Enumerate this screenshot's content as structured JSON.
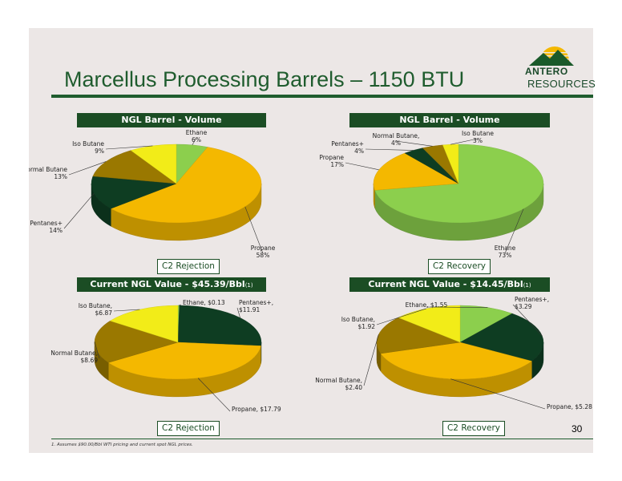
{
  "title": "Marcellus Processing Barrels – 1150 BTU",
  "logo": {
    "line1": "ANTERO",
    "line2": "RESOURCES"
  },
  "page_number": "30",
  "footnote": "1.    Assumes $90.00/Bbl WTI pricing and current spot NGL prices.",
  "colors": {
    "Ethane": "#8ccf4d",
    "Propane": "#f4b800",
    "Pentanes+": "#0e3d22",
    "Normal Butane": "#9a7800",
    "Iso Butane": "#f2ec18"
  },
  "panels": [
    {
      "header": "NGL Barrel - Volume",
      "header_sup": "",
      "tag": "C2 Rejection"
    },
    {
      "header": "NGL Barrel - Volume",
      "header_sup": "",
      "tag": "C2 Recovery"
    },
    {
      "header": "Current NGL Value - $45.39/Bbl",
      "header_sup": "(1)",
      "tag": "C2 Rejection"
    },
    {
      "header": "Current NGL Value - $14.45/Bbl",
      "header_sup": "(1)",
      "tag": "C2 Recovery"
    }
  ],
  "chart_data": [
    {
      "type": "pie",
      "title": "NGL Barrel - Volume",
      "subtitle": "C2 Rejection",
      "slices": [
        {
          "name": "Ethane",
          "value": 6,
          "label": "Ethane\n6%"
        },
        {
          "name": "Propane",
          "value": 58,
          "label": "Propane\n58%"
        },
        {
          "name": "Pentanes+",
          "value": 14,
          "label": "Pentanes+\n14%"
        },
        {
          "name": "Normal Butane",
          "value": 13,
          "label": "Normal Butane\n13%"
        },
        {
          "name": "Iso Butane",
          "value": 9,
          "label": "Iso Butane\n9%"
        }
      ]
    },
    {
      "type": "pie",
      "title": "NGL Barrel - Volume",
      "subtitle": "C2 Recovery",
      "slices": [
        {
          "name": "Ethane",
          "value": 73,
          "label": "Ethane\n73%"
        },
        {
          "name": "Propane",
          "value": 17,
          "label": "Propane\n17%"
        },
        {
          "name": "Pentanes+",
          "value": 4,
          "label": "Pentanes+\n4%"
        },
        {
          "name": "Normal Butane",
          "value": 4,
          "label": "Normal Butane,\n4%"
        },
        {
          "name": "Iso Butane",
          "value": 3,
          "label": "Iso Butane\n3%"
        }
      ]
    },
    {
      "type": "pie",
      "title": "Current NGL Value - $45.39/Bbl",
      "subtitle": "C2 Rejection",
      "slices": [
        {
          "name": "Ethane",
          "value": 0.13,
          "label": "Ethane, $0.13"
        },
        {
          "name": "Pentanes+",
          "value": 11.91,
          "label": "Pentanes+,\n$11.91"
        },
        {
          "name": "Propane",
          "value": 17.79,
          "label": "Propane, $17.79"
        },
        {
          "name": "Normal Butane",
          "value": 8.69,
          "label": "Normal Butane,\n$8.69"
        },
        {
          "name": "Iso Butane",
          "value": 6.87,
          "label": "Iso Butane,\n$6.87"
        }
      ]
    },
    {
      "type": "pie",
      "title": "Current NGL Value - $14.45/Bbl",
      "subtitle": "C2 Recovery",
      "slices": [
        {
          "name": "Ethane",
          "value": 1.55,
          "label": "Ethane, $1.55"
        },
        {
          "name": "Pentanes+",
          "value": 3.29,
          "label": "Pentanes+,\n$3.29"
        },
        {
          "name": "Propane",
          "value": 5.28,
          "label": "Propane, $5.28"
        },
        {
          "name": "Normal Butane",
          "value": 2.4,
          "label": "Normal Butane,\n$2.40"
        },
        {
          "name": "Iso Butane",
          "value": 1.92,
          "label": "Iso Butane,\n$1.92"
        }
      ]
    }
  ]
}
